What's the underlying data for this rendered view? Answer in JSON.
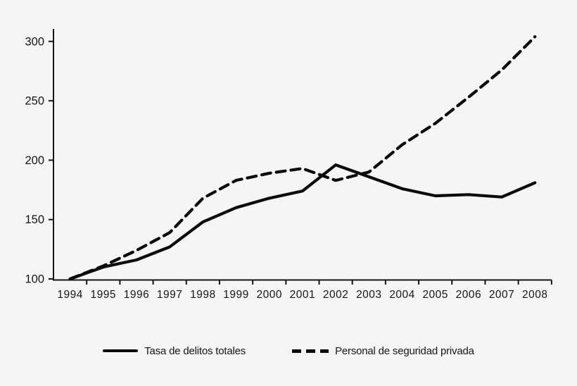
{
  "chart_data": {
    "type": "line",
    "title": "",
    "xlabel": "",
    "ylabel": "",
    "categories": [
      "1994",
      "1995",
      "1996",
      "1997",
      "1998",
      "1999",
      "2000",
      "2001",
      "2002",
      "2003",
      "2004",
      "2005",
      "2006",
      "2007",
      "2008"
    ],
    "y_ticks": [
      "100",
      "150",
      "200",
      "250",
      "300"
    ],
    "ylim": [
      100,
      310
    ],
    "grid": false,
    "legend_position": "bottom-center",
    "series": [
      {
        "name": "Tasa de delitos totales",
        "style": "solid",
        "color": "#0b0b0b",
        "values": [
          100,
          110,
          116,
          127,
          148,
          160,
          168,
          174,
          196,
          186,
          176,
          170,
          171,
          169,
          181
        ]
      },
      {
        "name": "Personal de seguridad privada",
        "style": "dashed",
        "color": "#0b0b0b",
        "values": [
          100,
          111,
          124,
          139,
          168,
          183,
          189,
          193,
          183,
          190,
          213,
          231,
          253,
          276,
          304
        ]
      }
    ]
  },
  "colors": {
    "background": "#f5f5f4",
    "axis": "#141414",
    "text": "#161616"
  }
}
